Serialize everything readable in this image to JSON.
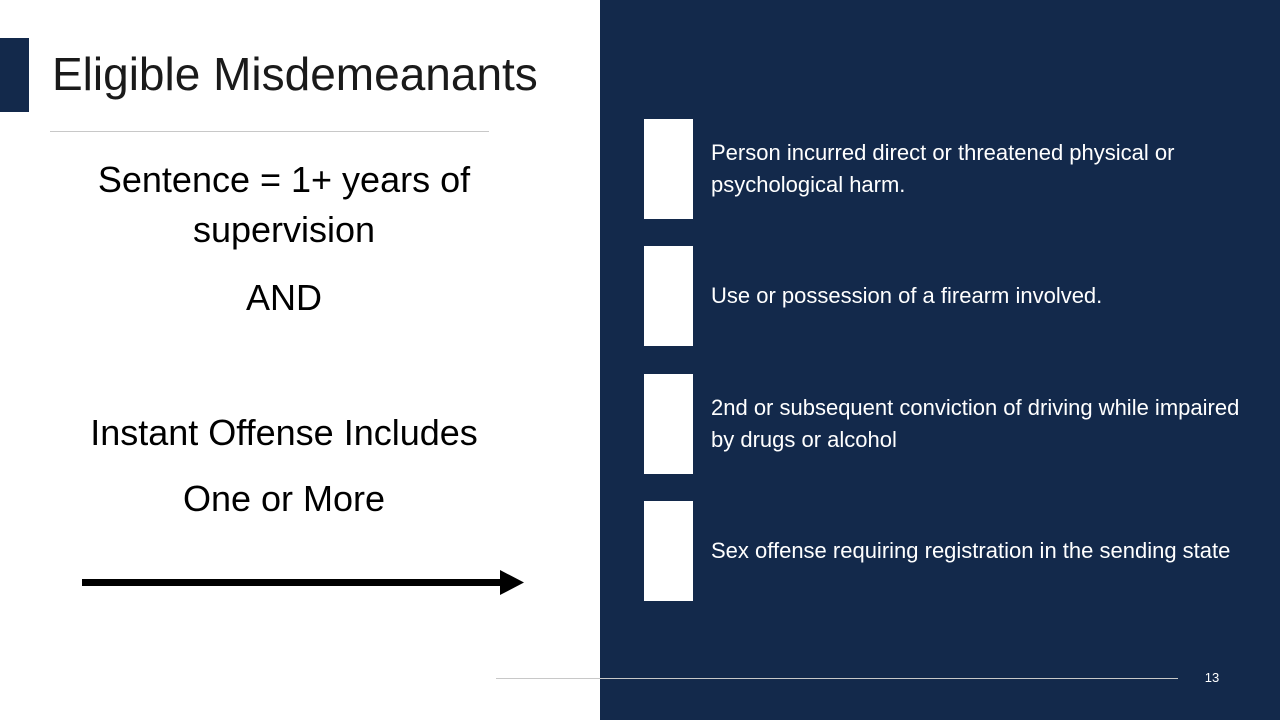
{
  "slide": {
    "title": "Eligible Misdemeanants",
    "left": {
      "sentence_line1": "Sentence = 1+ years of",
      "sentence_line2": "supervision",
      "and": "AND",
      "instant_offense": "Instant Offense Includes",
      "one_or_more": "One or More"
    },
    "criteria": [
      "Person incurred direct or threatened physical or psychological harm.",
      "Use or possession of a firearm involved.",
      "2nd or subsequent conviction of driving while impaired by drugs or alcohol",
      "Sex offense requiring registration in the sending state"
    ],
    "page_number": "13",
    "colors": {
      "navy": "#13294b",
      "white": "#ffffff",
      "text": "#000000",
      "rule": "#c8c8c8"
    },
    "icons": {
      "arrow": "right-arrow-icon"
    }
  }
}
